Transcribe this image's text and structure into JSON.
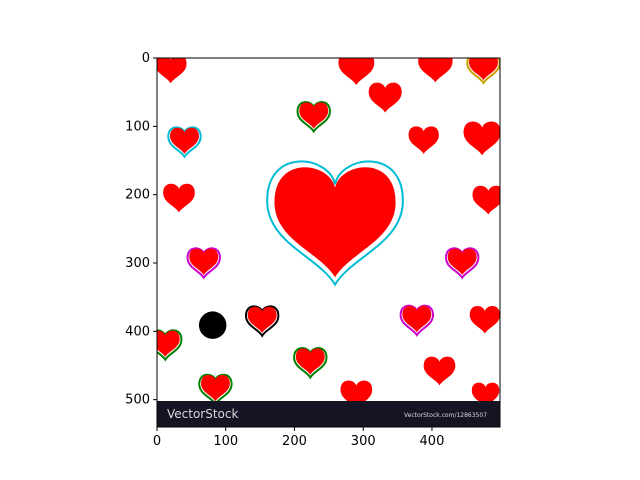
{
  "figure": {
    "axis": {
      "x_ticks": [
        "0",
        "100",
        "200",
        "300",
        "400"
      ],
      "y_ticks": [
        "0",
        "100",
        "200",
        "300",
        "400",
        "500"
      ],
      "x_range": [
        0,
        499
      ],
      "y_range": [
        540,
        0
      ]
    },
    "image": {
      "width": 499,
      "height": 540,
      "background": "#ffffff",
      "watermark_band_color": "#151425",
      "heart_fill": "#ff0000",
      "watermark_left": "VectorStock",
      "watermark_right": "VectorStock.com/12863507"
    },
    "hearts": [
      {
        "cx": 20,
        "cy": 18,
        "s": 46
      },
      {
        "cx": 290,
        "cy": 18,
        "s": 52
      },
      {
        "cx": 405,
        "cy": 15,
        "s": 50
      },
      {
        "cx": 332,
        "cy": 60,
        "s": 48
      },
      {
        "cx": 228,
        "cy": 86,
        "s": 42,
        "outline": "#008000"
      },
      {
        "cx": 475,
        "cy": 15,
        "s": 42,
        "outline": "#c8a000"
      },
      {
        "cx": 40,
        "cy": 123,
        "s": 42,
        "outline": "#00bcd4"
      },
      {
        "cx": 388,
        "cy": 122,
        "s": 44
      },
      {
        "cx": 473,
        "cy": 120,
        "s": 54
      },
      {
        "cx": 32,
        "cy": 207,
        "s": 46
      },
      {
        "cx": 482,
        "cy": 210,
        "s": 46
      },
      {
        "cx": 259,
        "cy": 248,
        "s": 176,
        "outline": "#00bcd4"
      },
      {
        "cx": 68,
        "cy": 300,
        "s": 42,
        "outline": "#cc00cc"
      },
      {
        "cx": 444,
        "cy": 300,
        "s": 42,
        "outline": "#cc00cc"
      },
      {
        "cx": 378,
        "cy": 384,
        "s": 42,
        "outline": "#cc00cc"
      },
      {
        "cx": 477,
        "cy": 385,
        "s": 44
      },
      {
        "cx": 153,
        "cy": 385,
        "s": 42,
        "outline": "#000000"
      },
      {
        "cx": 12,
        "cy": 420,
        "s": 42,
        "outline": "#008000"
      },
      {
        "cx": 223,
        "cy": 446,
        "s": 42,
        "outline": "#008000"
      },
      {
        "cx": 411,
        "cy": 460,
        "s": 46
      },
      {
        "cx": 290,
        "cy": 495,
        "s": 46
      },
      {
        "cx": 85,
        "cy": 485,
        "s": 42,
        "outline": "#008000"
      },
      {
        "cx": 478,
        "cy": 495,
        "s": 40
      }
    ],
    "black_dot": {
      "cx": 81,
      "cy": 391,
      "r": 20,
      "color": "#000000"
    }
  }
}
